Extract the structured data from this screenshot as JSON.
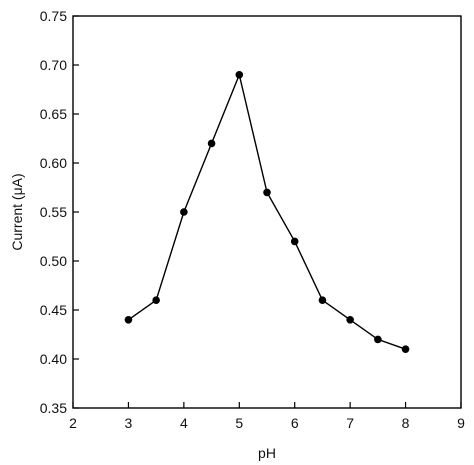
{
  "chart_data": {
    "type": "line",
    "title": "",
    "xlabel": "pH",
    "ylabel": "Current (μA)",
    "xlim": [
      2,
      9
    ],
    "ylim": [
      0.35,
      0.75
    ],
    "x_ticks": [
      2,
      3,
      4,
      5,
      6,
      7,
      8,
      9
    ],
    "y_ticks": [
      0.35,
      0.4,
      0.45,
      0.5,
      0.55,
      0.6,
      0.65,
      0.7,
      0.75
    ],
    "x_tick_labels": [
      "2",
      "3",
      "4",
      "5",
      "6",
      "7",
      "8",
      "9"
    ],
    "y_tick_labels": [
      "0.35",
      "0.40",
      "0.45",
      "0.50",
      "0.55",
      "0.60",
      "0.65",
      "0.70",
      "0.75"
    ],
    "grid": false,
    "legend": "none",
    "series": [
      {
        "x": [
          3,
          3.5,
          4,
          4.5,
          5,
          5.5,
          6,
          6.5,
          7,
          7.5,
          8
        ],
        "y": [
          0.44,
          0.46,
          0.55,
          0.62,
          0.69,
          0.57,
          0.52,
          0.46,
          0.44,
          0.42,
          0.41
        ],
        "color": "#000000",
        "marker": "circle"
      }
    ]
  }
}
